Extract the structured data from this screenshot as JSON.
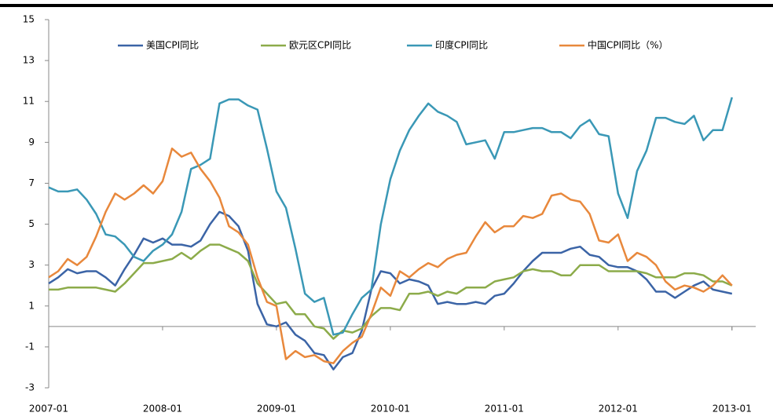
{
  "chart_data": {
    "type": "line",
    "x": [
      "2007-01",
      "2007-02",
      "2007-03",
      "2007-04",
      "2007-05",
      "2007-06",
      "2007-07",
      "2007-08",
      "2007-09",
      "2007-10",
      "2007-11",
      "2007-12",
      "2008-01",
      "2008-02",
      "2008-03",
      "2008-04",
      "2008-05",
      "2008-06",
      "2008-07",
      "2008-08",
      "2008-09",
      "2008-10",
      "2008-11",
      "2008-12",
      "2009-01",
      "2009-02",
      "2009-03",
      "2009-04",
      "2009-05",
      "2009-06",
      "2009-07",
      "2009-08",
      "2009-09",
      "2009-10",
      "2009-11",
      "2009-12",
      "2010-01",
      "2010-02",
      "2010-03",
      "2010-04",
      "2010-05",
      "2010-06",
      "2010-07",
      "2010-08",
      "2010-09",
      "2010-10",
      "2010-11",
      "2010-12",
      "2011-01",
      "2011-02",
      "2011-03",
      "2011-04",
      "2011-05",
      "2011-06",
      "2011-07",
      "2011-08",
      "2011-09",
      "2011-10",
      "2011-11",
      "2011-12",
      "2012-01",
      "2012-02",
      "2012-03",
      "2012-04",
      "2012-05",
      "2012-06",
      "2012-07",
      "2012-08",
      "2012-09",
      "2012-10",
      "2012-11",
      "2012-12",
      "2013-01"
    ],
    "xticks": [
      "2007-01",
      "2008-01",
      "2009-01",
      "2010-01",
      "2011-01",
      "2012-01",
      "2013-01"
    ],
    "ylim": [
      -3,
      15
    ],
    "yticks": [
      -3,
      -1,
      1,
      3,
      5,
      7,
      9,
      11,
      13,
      15
    ],
    "legend": "top",
    "series": [
      {
        "name": "美国CPI同比",
        "color": "#3b64a6",
        "values": [
          2.1,
          2.4,
          2.8,
          2.6,
          2.7,
          2.7,
          2.4,
          2.0,
          2.8,
          3.5,
          4.3,
          4.1,
          4.3,
          4.0,
          4.0,
          3.9,
          4.2,
          5.0,
          5.6,
          5.4,
          4.9,
          3.7,
          1.1,
          0.1,
          0.0,
          0.2,
          -0.4,
          -0.7,
          -1.3,
          -1.4,
          -2.1,
          -1.5,
          -1.3,
          -0.2,
          1.8,
          2.7,
          2.6,
          2.1,
          2.3,
          2.2,
          2.0,
          1.1,
          1.2,
          1.1,
          1.1,
          1.2,
          1.1,
          1.5,
          1.6,
          2.1,
          2.7,
          3.2,
          3.6,
          3.6,
          3.6,
          3.8,
          3.9,
          3.5,
          3.4,
          3.0,
          2.9,
          2.9,
          2.7,
          2.3,
          1.7,
          1.7,
          1.4,
          1.7,
          2.0,
          2.2,
          1.8,
          1.7,
          1.6
        ]
      },
      {
        "name": "欧元区CPI同比",
        "color": "#8cab4a",
        "values": [
          1.8,
          1.8,
          1.9,
          1.9,
          1.9,
          1.9,
          1.8,
          1.7,
          2.1,
          2.6,
          3.1,
          3.1,
          3.2,
          3.3,
          3.6,
          3.3,
          3.7,
          4.0,
          4.0,
          3.8,
          3.6,
          3.2,
          2.1,
          1.6,
          1.1,
          1.2,
          0.6,
          0.6,
          0.0,
          -0.1,
          -0.6,
          -0.2,
          -0.3,
          -0.1,
          0.5,
          0.9,
          0.9,
          0.8,
          1.6,
          1.6,
          1.7,
          1.5,
          1.7,
          1.6,
          1.9,
          1.9,
          1.9,
          2.2,
          2.3,
          2.4,
          2.7,
          2.8,
          2.7,
          2.7,
          2.5,
          2.5,
          3.0,
          3.0,
          3.0,
          2.7,
          2.7,
          2.7,
          2.7,
          2.6,
          2.4,
          2.4,
          2.4,
          2.6,
          2.6,
          2.5,
          2.2,
          2.2,
          2.0
        ]
      },
      {
        "name": "印度CPI同比",
        "color": "#3a98b6",
        "values": [
          6.8,
          6.6,
          6.6,
          6.7,
          6.2,
          5.5,
          4.5,
          4.4,
          4.0,
          3.4,
          3.2,
          3.7,
          4.0,
          4.5,
          5.6,
          7.7,
          7.9,
          8.2,
          10.9,
          11.1,
          11.1,
          10.8,
          10.6,
          8.7,
          6.6,
          5.8,
          3.8,
          1.6,
          1.2,
          1.4,
          -0.4,
          -0.3,
          0.6,
          1.4,
          1.8,
          5.0,
          7.2,
          8.6,
          9.6,
          10.3,
          10.9,
          10.5,
          10.3,
          10.0,
          8.9,
          9.0,
          9.1,
          8.2,
          9.5,
          9.5,
          9.6,
          9.7,
          9.7,
          9.5,
          9.5,
          9.2,
          9.8,
          10.1,
          9.4,
          9.3,
          6.5,
          5.3,
          7.6,
          8.6,
          10.2,
          10.2,
          10.0,
          9.9,
          10.3,
          9.1,
          9.6,
          9.6,
          11.2
        ]
      },
      {
        "name": "中国CPI同比（%）",
        "color": "#e8883c",
        "values": [
          2.4,
          2.7,
          3.3,
          3.0,
          3.4,
          4.4,
          5.6,
          6.5,
          6.2,
          6.5,
          6.9,
          6.5,
          7.1,
          8.7,
          8.3,
          8.5,
          7.7,
          7.1,
          6.3,
          4.9,
          4.6,
          4.0,
          2.4,
          1.2,
          1.0,
          -1.6,
          -1.2,
          -1.5,
          -1.4,
          -1.7,
          -1.8,
          -1.2,
          -0.8,
          -0.5,
          0.6,
          1.9,
          1.5,
          2.7,
          2.4,
          2.8,
          3.1,
          2.9,
          3.3,
          3.5,
          3.6,
          4.4,
          5.1,
          4.6,
          4.9,
          4.9,
          5.4,
          5.3,
          5.5,
          6.4,
          6.5,
          6.2,
          6.1,
          5.5,
          4.2,
          4.1,
          4.5,
          3.2,
          3.6,
          3.4,
          3.0,
          2.2,
          1.8,
          2.0,
          1.9,
          1.7,
          2.0,
          2.5,
          2.0
        ]
      }
    ]
  }
}
